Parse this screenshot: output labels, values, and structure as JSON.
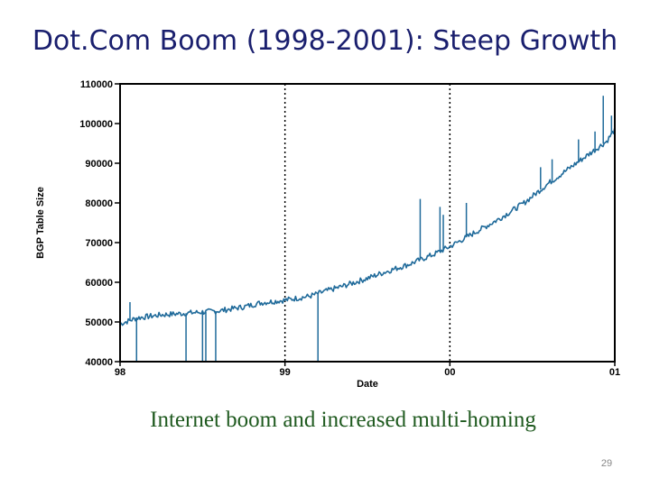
{
  "slide": {
    "title": "Dot.Com Boom (1998-2001): Steep Growth",
    "caption": "Internet boom and increased multi-homing",
    "page_number": "29"
  },
  "chart_data": {
    "type": "line",
    "xlabel": "Date",
    "ylabel": "BGP Table Size",
    "x_ticks": [
      "98",
      "99",
      "00",
      "01"
    ],
    "y_ticks": [
      "40000",
      "50000",
      "60000",
      "70000",
      "80000",
      "90000",
      "100000",
      "110000"
    ],
    "xlim": [
      1998.0,
      2001.0
    ],
    "ylim": [
      40000,
      110000
    ],
    "grid": "vertical dotted lines at year boundaries",
    "line_color": "#1f6a9a",
    "series": [
      {
        "x": [
          1998.0,
          1998.1,
          1998.25,
          1998.4,
          1998.5,
          1998.6,
          1998.75,
          1998.85,
          1999.0,
          1999.15,
          1999.25,
          1999.35,
          1999.5,
          1999.6,
          1999.75,
          1999.9,
          2000.0,
          2000.15,
          2000.3,
          2000.45,
          2000.6,
          2000.75,
          2000.85,
          2000.95,
          2001.0
        ],
        "y": [
          49500,
          51000,
          51800,
          52200,
          52500,
          52800,
          53800,
          54800,
          55500,
          56500,
          57800,
          59000,
          61000,
          62500,
          64500,
          67000,
          69000,
          72500,
          76000,
          80000,
          85000,
          89500,
          92500,
          95500,
          98500
        ]
      }
    ],
    "spikes": [
      {
        "x": 1998.1,
        "y": 40000
      },
      {
        "x": 1998.4,
        "y": 40000
      },
      {
        "x": 1998.5,
        "y": 40000
      },
      {
        "x": 1998.52,
        "y": 40000
      },
      {
        "x": 1998.58,
        "y": 40000
      },
      {
        "x": 1999.2,
        "y": 40000
      },
      {
        "x": 1998.06,
        "y": 55000
      },
      {
        "x": 1999.82,
        "y": 81000
      },
      {
        "x": 1999.94,
        "y": 79000
      },
      {
        "x": 1999.96,
        "y": 77000
      },
      {
        "x": 2000.1,
        "y": 80000
      },
      {
        "x": 2000.55,
        "y": 89000
      },
      {
        "x": 2000.62,
        "y": 91000
      },
      {
        "x": 2000.78,
        "y": 96000
      },
      {
        "x": 2000.88,
        "y": 98000
      },
      {
        "x": 2000.93,
        "y": 107000
      },
      {
        "x": 2000.98,
        "y": 102000
      }
    ]
  }
}
